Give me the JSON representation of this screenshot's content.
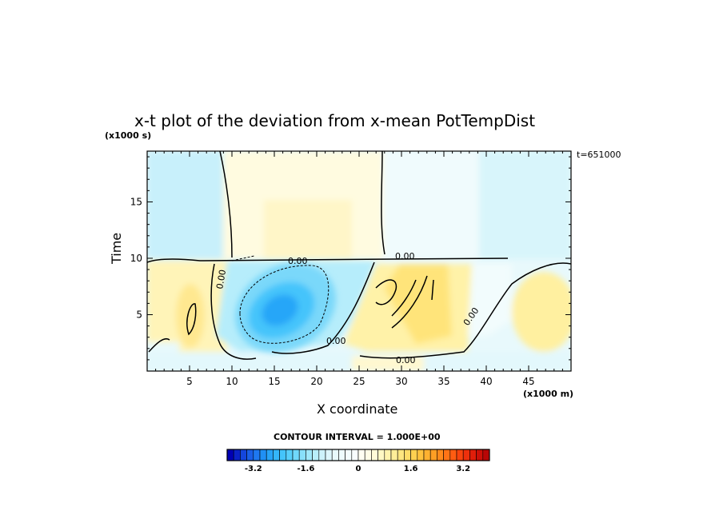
{
  "chart_data": {
    "type": "heatmap",
    "title": "x-t plot of the deviation from x-mean PotTempDist",
    "xlabel": "X coordinate",
    "ylabel": "Time",
    "x_unit": "(x1000 m)",
    "y_unit": "(x1000 s)",
    "timestamp": "t=651000",
    "xlim": [
      0,
      50
    ],
    "ylim": [
      0,
      19.5
    ],
    "x_ticks": [
      5,
      10,
      15,
      20,
      25,
      30,
      35,
      40,
      45
    ],
    "y_ticks": [
      5,
      10,
      15
    ],
    "contour_interval_text": "CONTOUR INTERVAL = 1.000E+00",
    "zero_contour_label": "0.00",
    "colorbar": {
      "min": -4.0,
      "max": 4.0,
      "step": 0.2,
      "tick_values": [
        -3.2,
        -1.6,
        0,
        1.6,
        3.2
      ],
      "tick_labels": [
        "-3.2",
        "-1.6",
        "0",
        "1.6",
        "3.2"
      ],
      "colors_negative": [
        "#0000b4",
        "#0a22c8",
        "#1446dc",
        "#1a5fe6",
        "#1e78f0",
        "#2090f5",
        "#28a4f8",
        "#34b6fa",
        "#44c4fb",
        "#58cffb",
        "#70d8fb",
        "#88e0fb",
        "#a0e8fb",
        "#b8eefb",
        "#cdf2fb",
        "#ddf6fc",
        "#e8f9fc",
        "#eefbfd",
        "#f3fcfd",
        "#f8fdfe"
      ],
      "colors_positive": [
        "#fffef2",
        "#fffde6",
        "#fffbd8",
        "#fff8c4",
        "#fff3ac",
        "#ffee98",
        "#ffe680",
        "#ffdc68",
        "#ffd050",
        "#ffc23e",
        "#ffb130",
        "#ff9e24",
        "#ff8a1c",
        "#ff7416",
        "#ff5c12",
        "#f8440e",
        "#ee300c",
        "#e01e0a",
        "#cc1008",
        "#b80606"
      ]
    },
    "features": [
      {
        "kind": "cold_anomaly",
        "center_x": 15.5,
        "center_t": 5.5,
        "peak": -2.2
      },
      {
        "kind": "warm_band",
        "x_range": [
          26,
          38
        ],
        "t_range": [
          1,
          10
        ],
        "peak": 1.2
      },
      {
        "kind": "warm_cell",
        "center_x": 5,
        "center_t": 4.5,
        "peak": 0.8
      }
    ]
  }
}
